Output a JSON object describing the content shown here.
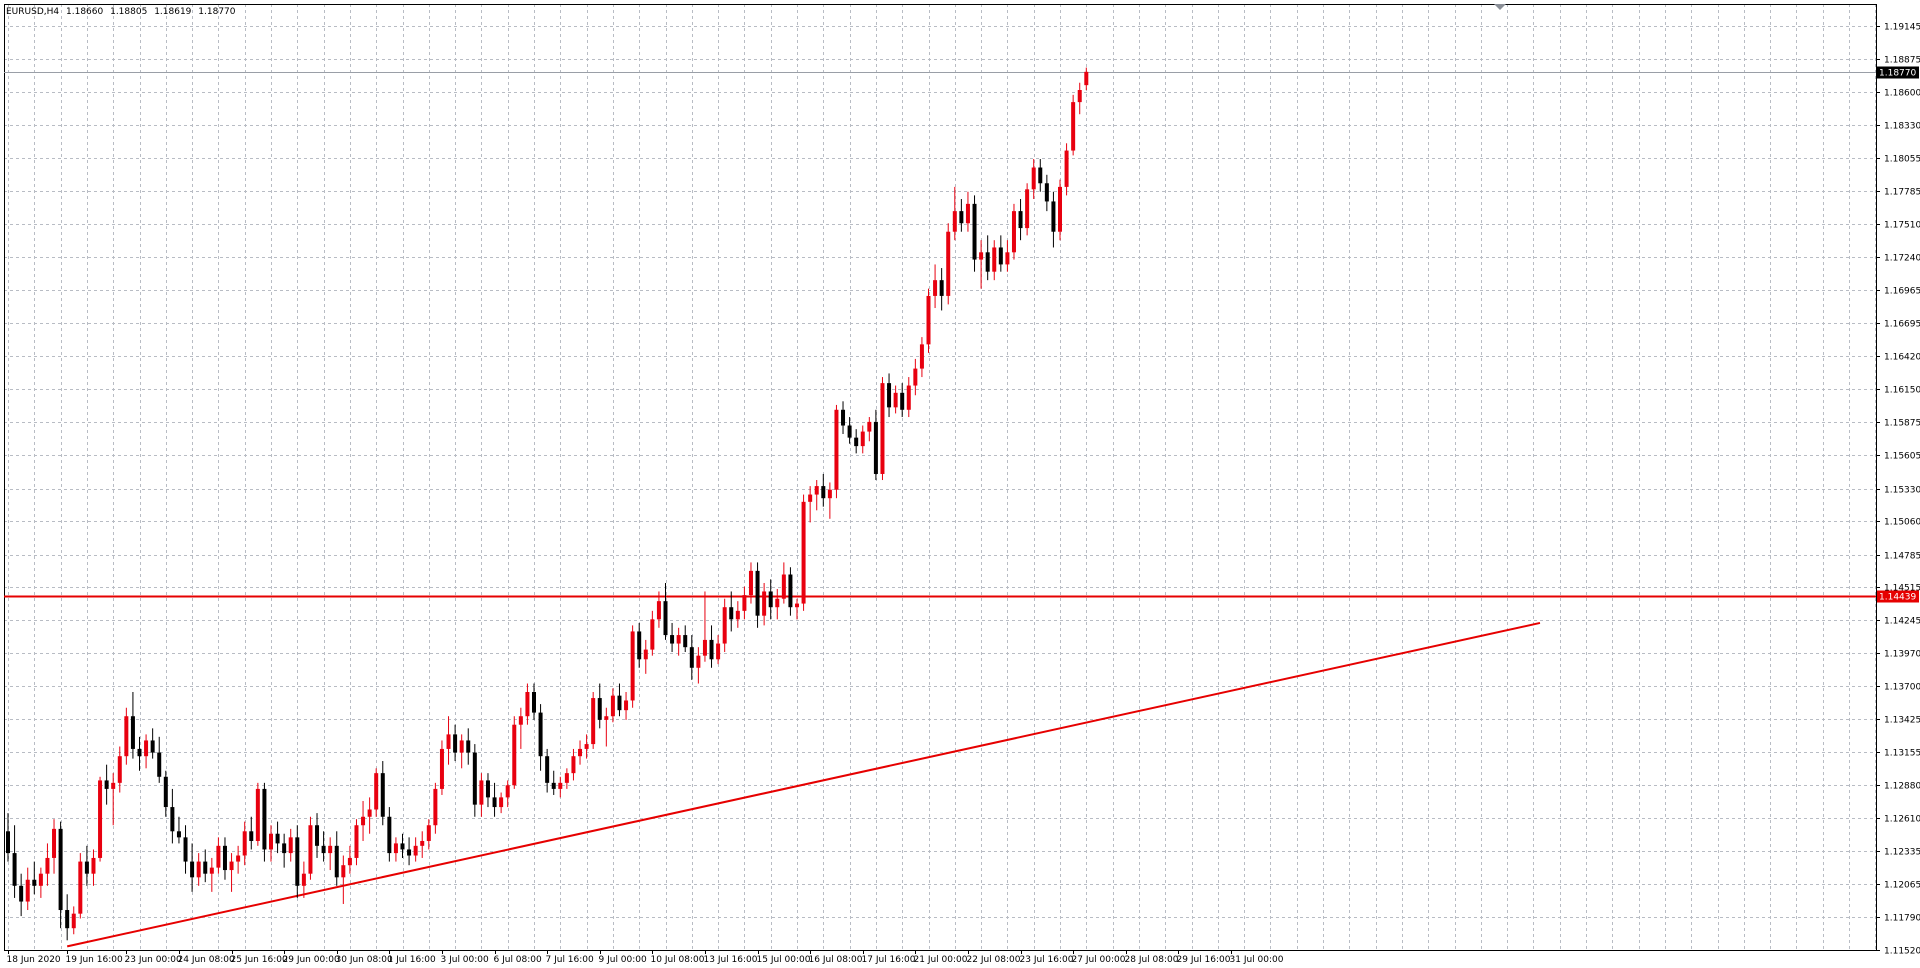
{
  "header": {
    "symbol": "EURUSD,H4",
    "open": "1.18660",
    "high": "1.18805",
    "low": "1.18619",
    "close": "1.18770"
  },
  "colors": {
    "background": "#ffffff",
    "grid": "#b8bcc4",
    "frame": "#000000",
    "bull": "#e8000f",
    "bear": "#000000",
    "support_line": "#e60000",
    "trend_line": "#e60000",
    "bid_line": "#9a9fa7",
    "bid_tag": "#000000",
    "support_tag": "#e60000"
  },
  "chart_data": {
    "type": "candlestick",
    "symbol": "EURUSD",
    "timeframe": "H4",
    "ylim": [
      1.1152,
      1.1933
    ],
    "grid": true,
    "y_ticks": [
      "1.19145",
      "1.18875",
      "1.18600",
      "1.18330",
      "1.18055",
      "1.17785",
      "1.17510",
      "1.17240",
      "1.16965",
      "1.16695",
      "1.16420",
      "1.16150",
      "1.15875",
      "1.15605",
      "1.15330",
      "1.15060",
      "1.14785",
      "1.14515",
      "1.14245",
      "1.13970",
      "1.13700",
      "1.13425",
      "1.13155",
      "1.12880",
      "1.12610",
      "1.12335",
      "1.12065",
      "1.11790",
      "1.11520"
    ],
    "x_ticks": [
      {
        "bar": 0,
        "label": "18 Jun 2020"
      },
      {
        "bar": 9,
        "label": "19 Jun 16:00"
      },
      {
        "bar": 18,
        "label": "23 Jun 00:00"
      },
      {
        "bar": 26,
        "label": "24 Jun 08:00"
      },
      {
        "bar": 34,
        "label": "25 Jun 16:00"
      },
      {
        "bar": 42,
        "label": "29 Jun 00:00"
      },
      {
        "bar": 50,
        "label": "30 Jun 08:00"
      },
      {
        "bar": 58,
        "label": "1 Jul 16:00"
      },
      {
        "bar": 66,
        "label": "3 Jul 00:00"
      },
      {
        "bar": 74,
        "label": "6 Jul 08:00"
      },
      {
        "bar": 82,
        "label": "7 Jul 16:00"
      },
      {
        "bar": 90,
        "label": "9 Jul 00:00"
      },
      {
        "bar": 98,
        "label": "10 Jul 08:00"
      },
      {
        "bar": 106,
        "label": "13 Jul 16:00"
      },
      {
        "bar": 114,
        "label": "15 Jul 00:00"
      },
      {
        "bar": 122,
        "label": "16 Jul 08:00"
      },
      {
        "bar": 130,
        "label": "17 Jul 16:00"
      },
      {
        "bar": 138,
        "label": "21 Jul 00:00"
      },
      {
        "bar": 146,
        "label": "22 Jul 08:00"
      },
      {
        "bar": 154,
        "label": "23 Jul 16:00"
      },
      {
        "bar": 162,
        "label": "27 Jul 00:00"
      },
      {
        "bar": 170,
        "label": "28 Jul 08:00"
      },
      {
        "bar": 178,
        "label": "29 Jul 16:00"
      },
      {
        "bar": 186,
        "label": "31 Jul 00:00"
      }
    ],
    "bid_price": 1.1877,
    "bid_label": "1.18770",
    "support_level": 1.14439,
    "support_label": "1.14439",
    "trend_line": {
      "from": {
        "bar": 9,
        "price": 1.1155
      },
      "to": {
        "bar": 233,
        "price": 1.1422
      }
    },
    "candles": [
      [
        1.125,
        1.1265,
        1.1225,
        1.1232
      ],
      [
        1.1232,
        1.1255,
        1.1195,
        1.1205
      ],
      [
        1.1205,
        1.1215,
        1.118,
        1.1192
      ],
      [
        1.1192,
        1.122,
        1.1185,
        1.121
      ],
      [
        1.121,
        1.1225,
        1.1198,
        1.1205
      ],
      [
        1.1205,
        1.122,
        1.1195,
        1.1215
      ],
      [
        1.1215,
        1.124,
        1.1205,
        1.1228
      ],
      [
        1.1228,
        1.126,
        1.1215,
        1.1252
      ],
      [
        1.1252,
        1.1258,
        1.117,
        1.1185
      ],
      [
        1.1185,
        1.1198,
        1.116,
        1.117
      ],
      [
        1.117,
        1.1188,
        1.1165,
        1.1182
      ],
      [
        1.1182,
        1.1232,
        1.1178,
        1.1225
      ],
      [
        1.1225,
        1.1238,
        1.1205,
        1.1215
      ],
      [
        1.1215,
        1.1235,
        1.1205,
        1.1228
      ],
      [
        1.1228,
        1.1295,
        1.1225,
        1.1292
      ],
      [
        1.1292,
        1.1305,
        1.1272,
        1.1285
      ],
      [
        1.1285,
        1.1298,
        1.1255,
        1.129
      ],
      [
        1.129,
        1.132,
        1.1282,
        1.1312
      ],
      [
        1.1312,
        1.1352,
        1.1305,
        1.1345
      ],
      [
        1.1345,
        1.1365,
        1.131,
        1.1318
      ],
      [
        1.1318,
        1.1328,
        1.13,
        1.1312
      ],
      [
        1.1312,
        1.133,
        1.1302,
        1.1325
      ],
      [
        1.1325,
        1.1335,
        1.131,
        1.1315
      ],
      [
        1.1315,
        1.1328,
        1.129,
        1.1295
      ],
      [
        1.1295,
        1.13,
        1.1262,
        1.127
      ],
      [
        1.127,
        1.1285,
        1.124,
        1.125
      ],
      [
        1.125,
        1.1262,
        1.124,
        1.1245
      ],
      [
        1.1245,
        1.1255,
        1.1215,
        1.1225
      ],
      [
        1.1225,
        1.124,
        1.12,
        1.1212
      ],
      [
        1.1212,
        1.1232,
        1.1205,
        1.1225
      ],
      [
        1.1225,
        1.1235,
        1.1208,
        1.1215
      ],
      [
        1.1215,
        1.1228,
        1.12,
        1.122
      ],
      [
        1.122,
        1.1245,
        1.1215,
        1.1238
      ],
      [
        1.1238,
        1.1245,
        1.121,
        1.1218
      ],
      [
        1.1218,
        1.1232,
        1.12,
        1.1225
      ],
      [
        1.1225,
        1.1238,
        1.1215,
        1.123
      ],
      [
        1.123,
        1.1258,
        1.1222,
        1.125
      ],
      [
        1.125,
        1.1262,
        1.1235,
        1.1242
      ],
      [
        1.1242,
        1.129,
        1.1238,
        1.1285
      ],
      [
        1.1285,
        1.129,
        1.1225,
        1.1235
      ],
      [
        1.1235,
        1.1255,
        1.1225,
        1.1248
      ],
      [
        1.1248,
        1.1258,
        1.1232,
        1.124
      ],
      [
        1.124,
        1.1248,
        1.122,
        1.1232
      ],
      [
        1.1232,
        1.1252,
        1.1225,
        1.1245
      ],
      [
        1.1245,
        1.1255,
        1.1195,
        1.1205
      ],
      [
        1.1205,
        1.1225,
        1.1195,
        1.1215
      ],
      [
        1.1215,
        1.1262,
        1.121,
        1.1255
      ],
      [
        1.1255,
        1.1265,
        1.1228,
        1.1238
      ],
      [
        1.1238,
        1.125,
        1.1225,
        1.1232
      ],
      [
        1.1232,
        1.1245,
        1.1218,
        1.1238
      ],
      [
        1.1238,
        1.125,
        1.1205,
        1.1212
      ],
      [
        1.1212,
        1.123,
        1.119,
        1.1222
      ],
      [
        1.1222,
        1.1238,
        1.1215,
        1.1228
      ],
      [
        1.1228,
        1.126,
        1.1222,
        1.1255
      ],
      [
        1.1255,
        1.1275,
        1.1242,
        1.1262
      ],
      [
        1.1262,
        1.1278,
        1.1248,
        1.1268
      ],
      [
        1.1268,
        1.1302,
        1.1262,
        1.1298
      ],
      [
        1.1298,
        1.1308,
        1.1255,
        1.1262
      ],
      [
        1.1262,
        1.127,
        1.1225,
        1.1232
      ],
      [
        1.1232,
        1.1245,
        1.1225,
        1.124
      ],
      [
        1.124,
        1.1248,
        1.1228,
        1.1235
      ],
      [
        1.1235,
        1.1245,
        1.1222,
        1.123
      ],
      [
        1.123,
        1.1245,
        1.1225,
        1.1238
      ],
      [
        1.1238,
        1.125,
        1.1228,
        1.1242
      ],
      [
        1.1242,
        1.126,
        1.1235,
        1.1255
      ],
      [
        1.1255,
        1.129,
        1.1248,
        1.1285
      ],
      [
        1.1285,
        1.1325,
        1.128,
        1.1318
      ],
      [
        1.1318,
        1.1345,
        1.1305,
        1.133
      ],
      [
        1.133,
        1.1338,
        1.1308,
        1.1315
      ],
      [
        1.1315,
        1.133,
        1.1302,
        1.1325
      ],
      [
        1.1325,
        1.1335,
        1.1305,
        1.1315
      ],
      [
        1.1315,
        1.1322,
        1.1262,
        1.1272
      ],
      [
        1.1272,
        1.1298,
        1.1262,
        1.1292
      ],
      [
        1.1292,
        1.1298,
        1.127,
        1.1278
      ],
      [
        1.1278,
        1.129,
        1.1262,
        1.127
      ],
      [
        1.127,
        1.1282,
        1.1265,
        1.1278
      ],
      [
        1.1278,
        1.1292,
        1.127,
        1.1288
      ],
      [
        1.1288,
        1.1345,
        1.1285,
        1.1338
      ],
      [
        1.1338,
        1.1352,
        1.1318,
        1.1345
      ],
      [
        1.1345,
        1.1372,
        1.1338,
        1.1365
      ],
      [
        1.1365,
        1.1372,
        1.1342,
        1.1348
      ],
      [
        1.1348,
        1.1355,
        1.13,
        1.1312
      ],
      [
        1.1312,
        1.1318,
        1.1282,
        1.129
      ],
      [
        1.129,
        1.13,
        1.128,
        1.1285
      ],
      [
        1.1285,
        1.1295,
        1.1278,
        1.129
      ],
      [
        1.129,
        1.1302,
        1.1285,
        1.1298
      ],
      [
        1.1298,
        1.1318,
        1.1292,
        1.1312
      ],
      [
        1.1312,
        1.1325,
        1.1305,
        1.1318
      ],
      [
        1.1318,
        1.133,
        1.131,
        1.1322
      ],
      [
        1.1322,
        1.1365,
        1.1318,
        1.136
      ],
      [
        1.136,
        1.1372,
        1.1335,
        1.1342
      ],
      [
        1.1342,
        1.1352,
        1.132,
        1.1345
      ],
      [
        1.1345,
        1.1368,
        1.134,
        1.1362
      ],
      [
        1.1362,
        1.1372,
        1.1345,
        1.135
      ],
      [
        1.135,
        1.1365,
        1.1342,
        1.1358
      ],
      [
        1.1358,
        1.142,
        1.1352,
        1.1415
      ],
      [
        1.1415,
        1.1422,
        1.1385,
        1.1392
      ],
      [
        1.1392,
        1.1408,
        1.138,
        1.14
      ],
      [
        1.14,
        1.1432,
        1.1395,
        1.1425
      ],
      [
        1.1425,
        1.1448,
        1.1418,
        1.144
      ],
      [
        1.144,
        1.1455,
        1.1408,
        1.1412
      ],
      [
        1.1412,
        1.1422,
        1.1398,
        1.1405
      ],
      [
        1.1405,
        1.1418,
        1.1395,
        1.1412
      ],
      [
        1.1412,
        1.142,
        1.1398,
        1.1402
      ],
      [
        1.1402,
        1.1412,
        1.1375,
        1.1385
      ],
      [
        1.1385,
        1.1402,
        1.1372,
        1.1395
      ],
      [
        1.1395,
        1.1448,
        1.139,
        1.1408
      ],
      [
        1.1408,
        1.142,
        1.1385,
        1.1392
      ],
      [
        1.1392,
        1.1412,
        1.1388,
        1.1405
      ],
      [
        1.1405,
        1.1442,
        1.1398,
        1.1435
      ],
      [
        1.1435,
        1.1448,
        1.1415,
        1.1425
      ],
      [
        1.1425,
        1.144,
        1.1418,
        1.1432
      ],
      [
        1.1432,
        1.1452,
        1.1425,
        1.1445
      ],
      [
        1.1445,
        1.1472,
        1.1438,
        1.1465
      ],
      [
        1.1465,
        1.1472,
        1.1418,
        1.1428
      ],
      [
        1.1428,
        1.1455,
        1.142,
        1.1448
      ],
      [
        1.1448,
        1.1458,
        1.1425,
        1.1435
      ],
      [
        1.1435,
        1.145,
        1.1425,
        1.1442
      ],
      [
        1.1442,
        1.1472,
        1.1438,
        1.1462
      ],
      [
        1.1462,
        1.1468,
        1.1428,
        1.1435
      ],
      [
        1.1435,
        1.1442,
        1.1425,
        1.1438
      ],
      [
        1.1438,
        1.1528,
        1.1432,
        1.1522
      ],
      [
        1.1522,
        1.1535,
        1.1505,
        1.1528
      ],
      [
        1.1528,
        1.154,
        1.1515,
        1.1535
      ],
      [
        1.1535,
        1.1545,
        1.1518,
        1.1525
      ],
      [
        1.1525,
        1.1538,
        1.1508,
        1.1532
      ],
      [
        1.1532,
        1.1602,
        1.1525,
        1.1598
      ],
      [
        1.1598,
        1.1605,
        1.1578,
        1.1585
      ],
      [
        1.1585,
        1.1592,
        1.157,
        1.1575
      ],
      [
        1.1575,
        1.1582,
        1.1562,
        1.1568
      ],
      [
        1.1568,
        1.1585,
        1.1562,
        1.158
      ],
      [
        1.158,
        1.1592,
        1.1572,
        1.1588
      ],
      [
        1.1588,
        1.1598,
        1.154,
        1.1545
      ],
      [
        1.1545,
        1.1625,
        1.154,
        1.162
      ],
      [
        1.162,
        1.1628,
        1.1592,
        1.16
      ],
      [
        1.16,
        1.1618,
        1.1595,
        1.1612
      ],
      [
        1.1612,
        1.162,
        1.1592,
        1.1598
      ],
      [
        1.1598,
        1.1625,
        1.1592,
        1.1618
      ],
      [
        1.1618,
        1.164,
        1.161,
        1.1632
      ],
      [
        1.1632,
        1.1658,
        1.1625,
        1.1652
      ],
      [
        1.1652,
        1.1698,
        1.1645,
        1.1692
      ],
      [
        1.1692,
        1.1718,
        1.1682,
        1.1705
      ],
      [
        1.1705,
        1.1715,
        1.168,
        1.1692
      ],
      [
        1.1692,
        1.1752,
        1.1685,
        1.1745
      ],
      [
        1.1745,
        1.1782,
        1.1738,
        1.1762
      ],
      [
        1.1762,
        1.1772,
        1.1745,
        1.1752
      ],
      [
        1.1752,
        1.1778,
        1.1745,
        1.1768
      ],
      [
        1.1768,
        1.1775,
        1.1712,
        1.1722
      ],
      [
        1.1722,
        1.1738,
        1.1698,
        1.1728
      ],
      [
        1.1728,
        1.1742,
        1.1705,
        1.1712
      ],
      [
        1.1712,
        1.1738,
        1.1705,
        1.1732
      ],
      [
        1.1732,
        1.1742,
        1.1712,
        1.1718
      ],
      [
        1.1718,
        1.1738,
        1.1712,
        1.1728
      ],
      [
        1.1728,
        1.1768,
        1.1722,
        1.1762
      ],
      [
        1.1762,
        1.1772,
        1.1738,
        1.1748
      ],
      [
        1.1748,
        1.1785,
        1.1742,
        1.178
      ],
      [
        1.178,
        1.1805,
        1.1772,
        1.1798
      ],
      [
        1.1798,
        1.1805,
        1.1778,
        1.1785
      ],
      [
        1.1785,
        1.1792,
        1.1762,
        1.177
      ],
      [
        1.177,
        1.1778,
        1.1732,
        1.1745
      ],
      [
        1.1745,
        1.1788,
        1.1738,
        1.1782
      ],
      [
        1.1782,
        1.1818,
        1.1775,
        1.1812
      ],
      [
        1.1812,
        1.1858,
        1.1808,
        1.1852
      ],
      [
        1.1852,
        1.1868,
        1.1842,
        1.1862
      ],
      [
        1.1866,
        1.18805,
        1.18619,
        1.1877
      ]
    ]
  }
}
